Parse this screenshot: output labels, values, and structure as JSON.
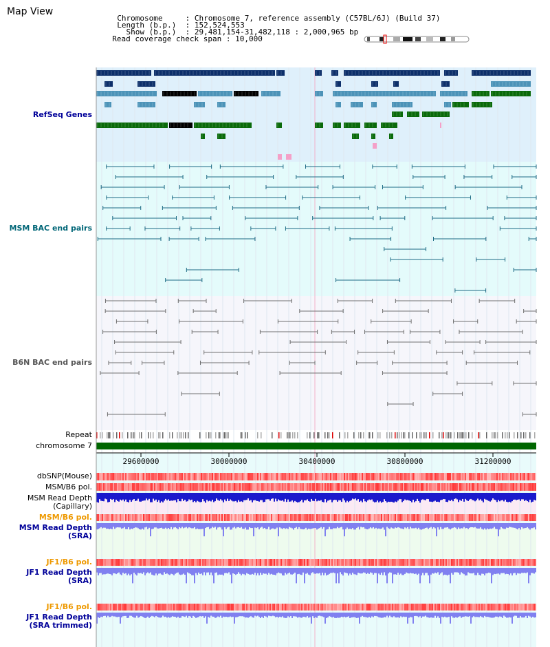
{
  "header": {
    "app_title": "Map View",
    "rows": [
      {
        "key": "Chromosome     ",
        "value": "Chromosome 7, reference assembly (C57BL/6J) (Build 37)"
      },
      {
        "key": "Length (b.p.)  ",
        "value": "152,524,553"
      },
      {
        "key": "  Show (b.p.)  ",
        "value": "29,481,154-31,482,118 : 2,000,965 bp"
      },
      {
        "key": "Read coverage check span",
        "value": "10,000"
      }
    ]
  },
  "tracks": {
    "refseq": "RefSeq Genes",
    "msm_bac": "MSM BAC end pairs",
    "b6n_bac": "B6N BAC end pairs",
    "repeat": "Repeat",
    "chromosome": "chromosome 7",
    "dbsnp": "dbSNP(Mouse)",
    "msm_b6_pol_a": "MSM/B6 pol.",
    "msm_read_depth_cap_1": "MSM Read Depth",
    "msm_read_depth_cap_2": "(Capillary)",
    "msm_b6_pol_b": "MSM/B6 pol.",
    "msm_read_depth_sra_1": "MSM Read Depth",
    "msm_read_depth_sra_2": "(SRA)",
    "jf1_b6_pol_a": "JF1/B6 pol.",
    "jf1_read_depth_sra_1": "JF1 Read Depth",
    "jf1_read_depth_sra_2": "(SRA)",
    "jf1_b6_pol_b": "JF1/B6 pol.",
    "jf1_read_depth_trim_1": "JF1 Read Depth",
    "jf1_read_depth_trim_2": "(SRA trimmed)"
  },
  "axis": {
    "ticks": [
      "29600000",
      "30000000",
      "30400000",
      "30800000",
      "31200000"
    ]
  },
  "colors": {
    "refseq_bg": "#dff0fb",
    "msm_bg": "#e4fbfb",
    "b6n_bg": "#f6f6fb",
    "gene_dark": "#0d2f6a",
    "gene_mid": "#4c93b8",
    "gene_green": "#0a6a0a",
    "bac_teal": "#1d6a84",
    "bac_gray": "#707070",
    "chrom_green": "#006600",
    "depth_blue": "#1a1acc",
    "depth_light": "#8080f0",
    "label_blue": "#000099",
    "label_teal": "#006677",
    "label_orange": "#ee9900"
  }
}
